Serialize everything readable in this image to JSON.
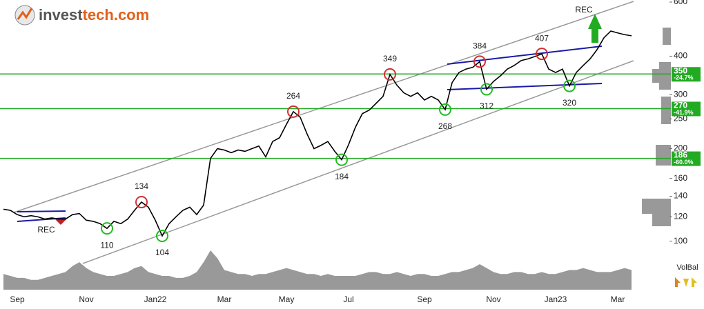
{
  "logo": {
    "part1": "invest",
    "part2": "tech.com"
  },
  "chart_data": {
    "type": "line",
    "categories": [
      null,
      null,
      "Sep",
      null,
      null,
      null,
      null,
      null,
      null,
      null,
      null,
      null,
      "Nov",
      null,
      null,
      null,
      null,
      null,
      null,
      null,
      null,
      null,
      "Jan22",
      null,
      null,
      null,
      null,
      null,
      null,
      null,
      null,
      null,
      "Mar",
      null,
      null,
      null,
      null,
      null,
      null,
      null,
      null,
      "May",
      null,
      null,
      null,
      null,
      null,
      null,
      null,
      null,
      "Jul",
      null,
      null,
      null,
      null,
      null,
      null,
      null,
      null,
      null,
      null,
      "Sep",
      null,
      null,
      null,
      null,
      null,
      null,
      null,
      null,
      null,
      "Nov",
      null,
      null,
      null,
      null,
      null,
      null,
      null,
      null,
      "Jan23",
      null,
      null,
      null,
      null,
      null,
      null,
      null,
      null,
      "Mar",
      null,
      null
    ],
    "series": [
      {
        "name": "Price",
        "color": "#000000",
        "values": [
          127,
          126,
          122,
          120,
          121,
          120,
          118,
          119,
          118,
          118,
          122,
          123,
          117,
          116,
          114,
          110,
          116,
          114,
          118,
          126,
          134,
          129,
          117,
          104,
          114,
          120,
          126,
          129,
          122,
          131,
          186,
          200,
          198,
          194,
          198,
          196,
          200,
          204,
          188,
          211,
          217,
          240,
          264,
          253,
          223,
          200,
          205,
          211,
          196,
          184,
          206,
          235,
          260,
          267,
          281,
          296,
          349,
          322,
          304,
          296,
          304,
          288,
          296,
          288,
          268,
          328,
          354,
          363,
          368,
          384,
          312,
          331,
          345,
          363,
          373,
          387,
          392,
          399,
          407,
          363,
          354,
          363,
          320,
          354,
          373,
          392,
          420,
          459,
          483,
          476,
          470,
          466
        ]
      }
    ],
    "ylim": [
      90,
      600
    ],
    "log_scale": true,
    "yticks": [
      100,
      120,
      140,
      160,
      200,
      250,
      300,
      400,
      600
    ],
    "pivots": [
      {
        "value": 134,
        "color": "#d03030"
      },
      {
        "value": 110,
        "color": "#22bb22"
      },
      {
        "value": 104,
        "color": "#22bb22"
      },
      {
        "value": 264,
        "color": "#d03030"
      },
      {
        "value": 184,
        "color": "#22bb22"
      },
      {
        "value": 349,
        "color": "#d03030"
      },
      {
        "value": 268,
        "color": "#22bb22"
      },
      {
        "value": 384,
        "color": "#d03030"
      },
      {
        "value": 312,
        "color": "#22bb22"
      },
      {
        "value": 407,
        "color": "#d03030"
      },
      {
        "value": 320,
        "color": "#22bb22"
      }
    ],
    "levels": [
      {
        "value": 350,
        "change": "-24.7%"
      },
      {
        "value": 270,
        "change": "-41.9%"
      },
      {
        "value": 186,
        "change": "-60.0%"
      }
    ],
    "level_color": "#22aa22",
    "signals": [
      "REC",
      "REC"
    ],
    "volume": {
      "name": "VolBal",
      "color": "#999999",
      "ylim": [
        0,
        100
      ],
      "values": [
        40,
        35,
        30,
        30,
        25,
        25,
        30,
        35,
        40,
        45,
        60,
        70,
        55,
        45,
        40,
        35,
        35,
        40,
        45,
        55,
        60,
        45,
        40,
        35,
        35,
        30,
        30,
        35,
        45,
        70,
        100,
        80,
        50,
        45,
        40,
        40,
        35,
        40,
        40,
        45,
        50,
        55,
        50,
        45,
        40,
        40,
        35,
        40,
        35,
        35,
        35,
        35,
        40,
        45,
        45,
        40,
        40,
        45,
        40,
        35,
        40,
        40,
        35,
        35,
        40,
        45,
        45,
        50,
        55,
        65,
        55,
        45,
        40,
        40,
        45,
        45,
        40,
        40,
        45,
        40,
        40,
        45,
        50,
        50,
        55,
        50,
        45,
        45,
        45,
        50,
        55,
        50
      ]
    }
  }
}
